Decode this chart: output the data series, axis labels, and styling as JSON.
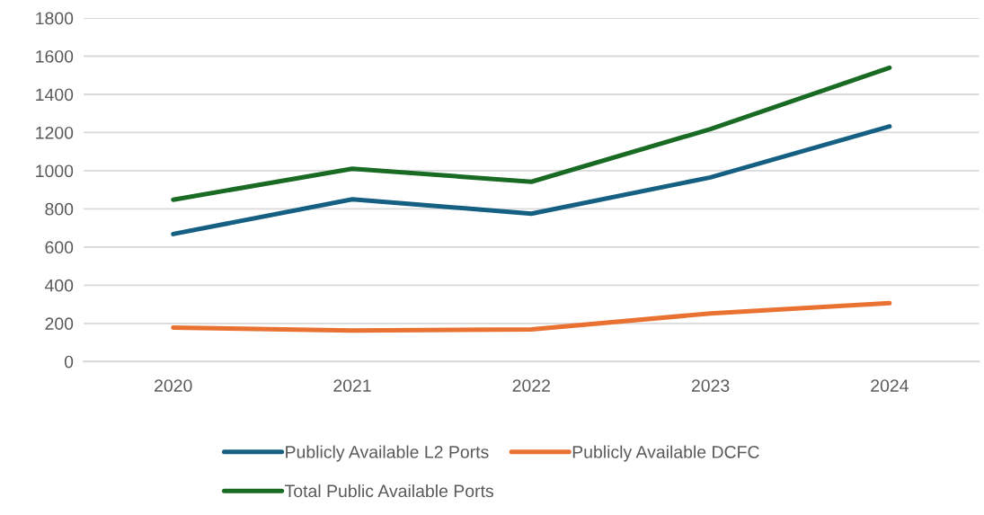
{
  "chart_data": {
    "type": "line",
    "categories": [
      "2020",
      "2021",
      "2022",
      "2023",
      "2024"
    ],
    "series": [
      {
        "name": "Publicly Available L2 Ports",
        "color": "#156082",
        "values": [
          668,
          850,
          775,
          965,
          1232
        ]
      },
      {
        "name": "Publicly Available DCFC",
        "color": "#e97132",
        "values": [
          178,
          162,
          168,
          252,
          306
        ]
      },
      {
        "name": "Total Public Available Ports",
        "color": "#196b24",
        "values": [
          848,
          1010,
          942,
          1218,
          1540
        ]
      }
    ],
    "ylim": [
      0,
      1800
    ],
    "yticks": [
      0,
      200,
      400,
      600,
      800,
      1000,
      1200,
      1400,
      1600,
      1800
    ],
    "grid": "y",
    "legend": "bottom",
    "marker": "none",
    "line_style": "solid"
  }
}
